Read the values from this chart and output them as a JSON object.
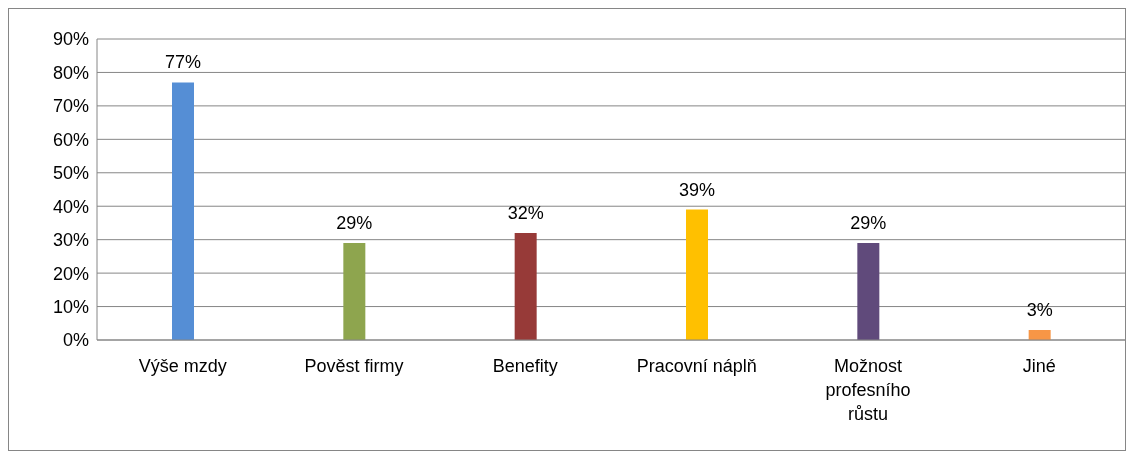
{
  "chart_data": {
    "type": "bar",
    "categories": [
      "Výše mzdy",
      "Pověst firmy",
      "Benefity",
      "Pracovní náplň",
      "Možnost profesního růstu",
      "Jiné"
    ],
    "values": [
      77,
      29,
      32,
      39,
      29,
      3
    ],
    "value_labels": [
      "77%",
      "29%",
      "32%",
      "39%",
      "29%",
      "3%"
    ],
    "colors": [
      "#558ed5",
      "#8ea54e",
      "#973a38",
      "#ffc000",
      "#604a7b",
      "#f79646"
    ],
    "ylim": [
      0,
      90
    ],
    "yticks": [
      {
        "value": 0,
        "label": "0%"
      },
      {
        "value": 10,
        "label": "10%"
      },
      {
        "value": 20,
        "label": "20%"
      },
      {
        "value": 30,
        "label": "30%"
      },
      {
        "value": 40,
        "label": "40%"
      },
      {
        "value": 50,
        "label": "50%"
      },
      {
        "value": 60,
        "label": "60%"
      },
      {
        "value": 70,
        "label": "70%"
      },
      {
        "value": 80,
        "label": "80%"
      },
      {
        "value": 90,
        "label": "90%"
      }
    ],
    "grid": "y",
    "legend": false
  }
}
